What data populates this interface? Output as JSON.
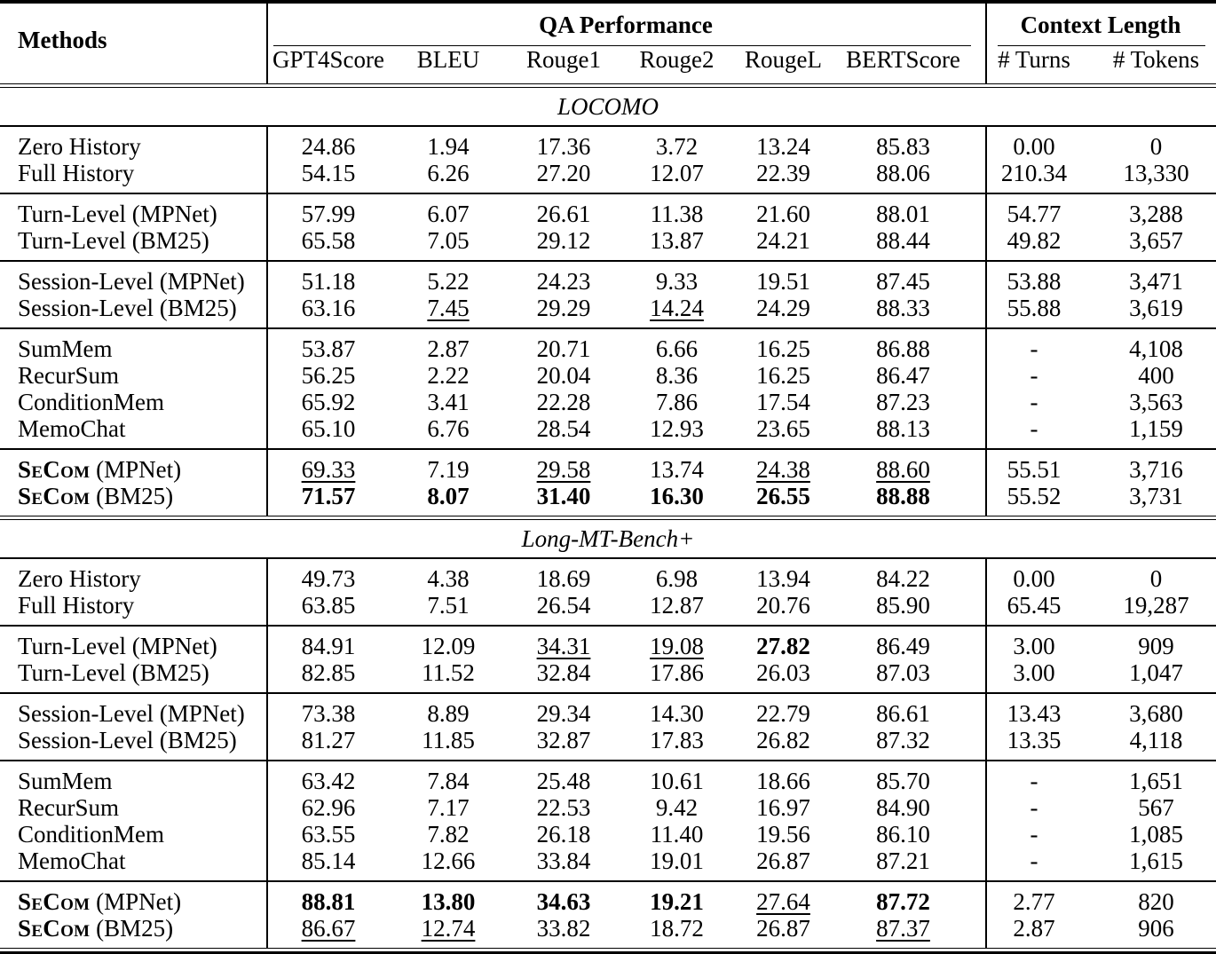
{
  "headers": {
    "methods": "Methods",
    "qa": "QA Performance",
    "ctx": "Context Length"
  },
  "metric_headers": [
    "GPT4Score",
    "BLEU",
    "Rouge1",
    "Rouge2",
    "RougeL",
    "BERTScore",
    "# Turns",
    "# Tokens"
  ],
  "colors": {
    "text": "#000000",
    "background": "#ffffff",
    "rule": "#000000"
  },
  "sections": [
    {
      "name": "LOCOMO",
      "groups": [
        [
          {
            "m": "Zero History",
            "suffix": "",
            "sc": false,
            "cells": [
              [
                "24.86",
                "n"
              ],
              [
                "1.94",
                "n"
              ],
              [
                "17.36",
                "n"
              ],
              [
                "3.72",
                "n"
              ],
              [
                "13.24",
                "n"
              ],
              [
                "85.83",
                "n"
              ],
              [
                "0.00",
                "n"
              ],
              [
                "0",
                "n"
              ]
            ]
          },
          {
            "m": "Full History",
            "suffix": "",
            "sc": false,
            "cells": [
              [
                "54.15",
                "n"
              ],
              [
                "6.26",
                "n"
              ],
              [
                "27.20",
                "n"
              ],
              [
                "12.07",
                "n"
              ],
              [
                "22.39",
                "n"
              ],
              [
                "88.06",
                "n"
              ],
              [
                "210.34",
                "n"
              ],
              [
                "13,330",
                "n"
              ]
            ]
          }
        ],
        [
          {
            "m": "Turn-Level (MPNet)",
            "suffix": "",
            "sc": false,
            "cells": [
              [
                "57.99",
                "n"
              ],
              [
                "6.07",
                "n"
              ],
              [
                "26.61",
                "n"
              ],
              [
                "11.38",
                "n"
              ],
              [
                "21.60",
                "n"
              ],
              [
                "88.01",
                "n"
              ],
              [
                "54.77",
                "n"
              ],
              [
                "3,288",
                "n"
              ]
            ]
          },
          {
            "m": "Turn-Level (BM25)",
            "suffix": "",
            "sc": false,
            "cells": [
              [
                "65.58",
                "n"
              ],
              [
                "7.05",
                "n"
              ],
              [
                "29.12",
                "n"
              ],
              [
                "13.87",
                "n"
              ],
              [
                "24.21",
                "n"
              ],
              [
                "88.44",
                "n"
              ],
              [
                "49.82",
                "n"
              ],
              [
                "3,657",
                "n"
              ]
            ]
          }
        ],
        [
          {
            "m": "Session-Level (MPNet)",
            "suffix": "",
            "sc": false,
            "cells": [
              [
                "51.18",
                "n"
              ],
              [
                "5.22",
                "n"
              ],
              [
                "24.23",
                "n"
              ],
              [
                "9.33",
                "n"
              ],
              [
                "19.51",
                "n"
              ],
              [
                "87.45",
                "n"
              ],
              [
                "53.88",
                "n"
              ],
              [
                "3,471",
                "n"
              ]
            ]
          },
          {
            "m": "Session-Level (BM25)",
            "suffix": "",
            "sc": false,
            "cells": [
              [
                "63.16",
                "n"
              ],
              [
                "7.45",
                "u"
              ],
              [
                "29.29",
                "n"
              ],
              [
                "14.24",
                "u"
              ],
              [
                "24.29",
                "n"
              ],
              [
                "88.33",
                "n"
              ],
              [
                "55.88",
                "n"
              ],
              [
                "3,619",
                "n"
              ]
            ]
          }
        ],
        [
          {
            "m": "SumMem",
            "suffix": "",
            "sc": false,
            "cells": [
              [
                "53.87",
                "n"
              ],
              [
                "2.87",
                "n"
              ],
              [
                "20.71",
                "n"
              ],
              [
                "6.66",
                "n"
              ],
              [
                "16.25",
                "n"
              ],
              [
                "86.88",
                "n"
              ],
              [
                "-",
                "n"
              ],
              [
                "4,108",
                "n"
              ]
            ]
          },
          {
            "m": "RecurSum",
            "suffix": "",
            "sc": false,
            "cells": [
              [
                "56.25",
                "n"
              ],
              [
                "2.22",
                "n"
              ],
              [
                "20.04",
                "n"
              ],
              [
                "8.36",
                "n"
              ],
              [
                "16.25",
                "n"
              ],
              [
                "86.47",
                "n"
              ],
              [
                "-",
                "n"
              ],
              [
                "400",
                "n"
              ]
            ]
          },
          {
            "m": "ConditionMem",
            "suffix": "",
            "sc": false,
            "cells": [
              [
                "65.92",
                "n"
              ],
              [
                "3.41",
                "n"
              ],
              [
                "22.28",
                "n"
              ],
              [
                "7.86",
                "n"
              ],
              [
                "17.54",
                "n"
              ],
              [
                "87.23",
                "n"
              ],
              [
                "-",
                "n"
              ],
              [
                "3,563",
                "n"
              ]
            ]
          },
          {
            "m": "MemoChat",
            "suffix": "",
            "sc": false,
            "cells": [
              [
                "65.10",
                "n"
              ],
              [
                "6.76",
                "n"
              ],
              [
                "28.54",
                "n"
              ],
              [
                "12.93",
                "n"
              ],
              [
                "23.65",
                "n"
              ],
              [
                "88.13",
                "n"
              ],
              [
                "-",
                "n"
              ],
              [
                "1,159",
                "n"
              ]
            ]
          }
        ],
        [
          {
            "m": "SeCom",
            "suffix": " (MPNet)",
            "sc": true,
            "cells": [
              [
                "69.33",
                "u"
              ],
              [
                "7.19",
                "n"
              ],
              [
                "29.58",
                "u"
              ],
              [
                "13.74",
                "n"
              ],
              [
                "24.38",
                "u"
              ],
              [
                "88.60",
                "u"
              ],
              [
                "55.51",
                "n"
              ],
              [
                "3,716",
                "n"
              ]
            ]
          },
          {
            "m": "SeCom",
            "suffix": " (BM25)",
            "sc": true,
            "cells": [
              [
                "71.57",
                "b"
              ],
              [
                "8.07",
                "b"
              ],
              [
                "31.40",
                "b"
              ],
              [
                "16.30",
                "b"
              ],
              [
                "26.55",
                "b"
              ],
              [
                "88.88",
                "b"
              ],
              [
                "55.52",
                "n"
              ],
              [
                "3,731",
                "n"
              ]
            ]
          }
        ]
      ]
    },
    {
      "name": "Long-MT-Bench+",
      "groups": [
        [
          {
            "m": "Zero History",
            "suffix": "",
            "sc": false,
            "cells": [
              [
                "49.73",
                "n"
              ],
              [
                "4.38",
                "n"
              ],
              [
                "18.69",
                "n"
              ],
              [
                "6.98",
                "n"
              ],
              [
                "13.94",
                "n"
              ],
              [
                "84.22",
                "n"
              ],
              [
                "0.00",
                "n"
              ],
              [
                "0",
                "n"
              ]
            ]
          },
          {
            "m": "Full History",
            "suffix": "",
            "sc": false,
            "cells": [
              [
                "63.85",
                "n"
              ],
              [
                "7.51",
                "n"
              ],
              [
                "26.54",
                "n"
              ],
              [
                "12.87",
                "n"
              ],
              [
                "20.76",
                "n"
              ],
              [
                "85.90",
                "n"
              ],
              [
                "65.45",
                "n"
              ],
              [
                "19,287",
                "n"
              ]
            ]
          }
        ],
        [
          {
            "m": "Turn-Level (MPNet)",
            "suffix": "",
            "sc": false,
            "cells": [
              [
                "84.91",
                "n"
              ],
              [
                "12.09",
                "n"
              ],
              [
                "34.31",
                "u"
              ],
              [
                "19.08",
                "u"
              ],
              [
                "27.82",
                "b"
              ],
              [
                "86.49",
                "n"
              ],
              [
                "3.00",
                "n"
              ],
              [
                "909",
                "n"
              ]
            ]
          },
          {
            "m": "Turn-Level (BM25)",
            "suffix": "",
            "sc": false,
            "cells": [
              [
                "82.85",
                "n"
              ],
              [
                "11.52",
                "n"
              ],
              [
                "32.84",
                "n"
              ],
              [
                "17.86",
                "n"
              ],
              [
                "26.03",
                "n"
              ],
              [
                "87.03",
                "n"
              ],
              [
                "3.00",
                "n"
              ],
              [
                "1,047",
                "n"
              ]
            ]
          }
        ],
        [
          {
            "m": "Session-Level (MPNet)",
            "suffix": "",
            "sc": false,
            "cells": [
              [
                "73.38",
                "n"
              ],
              [
                "8.89",
                "n"
              ],
              [
                "29.34",
                "n"
              ],
              [
                "14.30",
                "n"
              ],
              [
                "22.79",
                "n"
              ],
              [
                "86.61",
                "n"
              ],
              [
                "13.43",
                "n"
              ],
              [
                "3,680",
                "n"
              ]
            ]
          },
          {
            "m": "Session-Level (BM25)",
            "suffix": "",
            "sc": false,
            "cells": [
              [
                "81.27",
                "n"
              ],
              [
                "11.85",
                "n"
              ],
              [
                "32.87",
                "n"
              ],
              [
                "17.83",
                "n"
              ],
              [
                "26.82",
                "n"
              ],
              [
                "87.32",
                "n"
              ],
              [
                "13.35",
                "n"
              ],
              [
                "4,118",
                "n"
              ]
            ]
          }
        ],
        [
          {
            "m": "SumMem",
            "suffix": "",
            "sc": false,
            "cells": [
              [
                "63.42",
                "n"
              ],
              [
                "7.84",
                "n"
              ],
              [
                "25.48",
                "n"
              ],
              [
                "10.61",
                "n"
              ],
              [
                "18.66",
                "n"
              ],
              [
                "85.70",
                "n"
              ],
              [
                "-",
                "n"
              ],
              [
                "1,651",
                "n"
              ]
            ]
          },
          {
            "m": "RecurSum",
            "suffix": "",
            "sc": false,
            "cells": [
              [
                "62.96",
                "n"
              ],
              [
                "7.17",
                "n"
              ],
              [
                "22.53",
                "n"
              ],
              [
                "9.42",
                "n"
              ],
              [
                "16.97",
                "n"
              ],
              [
                "84.90",
                "n"
              ],
              [
                "-",
                "n"
              ],
              [
                "567",
                "n"
              ]
            ]
          },
          {
            "m": "ConditionMem",
            "suffix": "",
            "sc": false,
            "cells": [
              [
                "63.55",
                "n"
              ],
              [
                "7.82",
                "n"
              ],
              [
                "26.18",
                "n"
              ],
              [
                "11.40",
                "n"
              ],
              [
                "19.56",
                "n"
              ],
              [
                "86.10",
                "n"
              ],
              [
                "-",
                "n"
              ],
              [
                "1,085",
                "n"
              ]
            ]
          },
          {
            "m": "MemoChat",
            "suffix": "",
            "sc": false,
            "cells": [
              [
                "85.14",
                "n"
              ],
              [
                "12.66",
                "n"
              ],
              [
                "33.84",
                "n"
              ],
              [
                "19.01",
                "n"
              ],
              [
                "26.87",
                "n"
              ],
              [
                "87.21",
                "n"
              ],
              [
                "-",
                "n"
              ],
              [
                "1,615",
                "n"
              ]
            ]
          }
        ],
        [
          {
            "m": "SeCom",
            "suffix": " (MPNet)",
            "sc": true,
            "cells": [
              [
                "88.81",
                "b"
              ],
              [
                "13.80",
                "b"
              ],
              [
                "34.63",
                "b"
              ],
              [
                "19.21",
                "b"
              ],
              [
                "27.64",
                "u"
              ],
              [
                "87.72",
                "b"
              ],
              [
                "2.77",
                "n"
              ],
              [
                "820",
                "n"
              ]
            ]
          },
          {
            "m": "SeCom",
            "suffix": " (BM25)",
            "sc": true,
            "cells": [
              [
                "86.67",
                "u"
              ],
              [
                "12.74",
                "u"
              ],
              [
                "33.82",
                "n"
              ],
              [
                "18.72",
                "n"
              ],
              [
                "26.87",
                "n"
              ],
              [
                "87.37",
                "u"
              ],
              [
                "2.87",
                "n"
              ],
              [
                "906",
                "n"
              ]
            ]
          }
        ]
      ]
    }
  ]
}
